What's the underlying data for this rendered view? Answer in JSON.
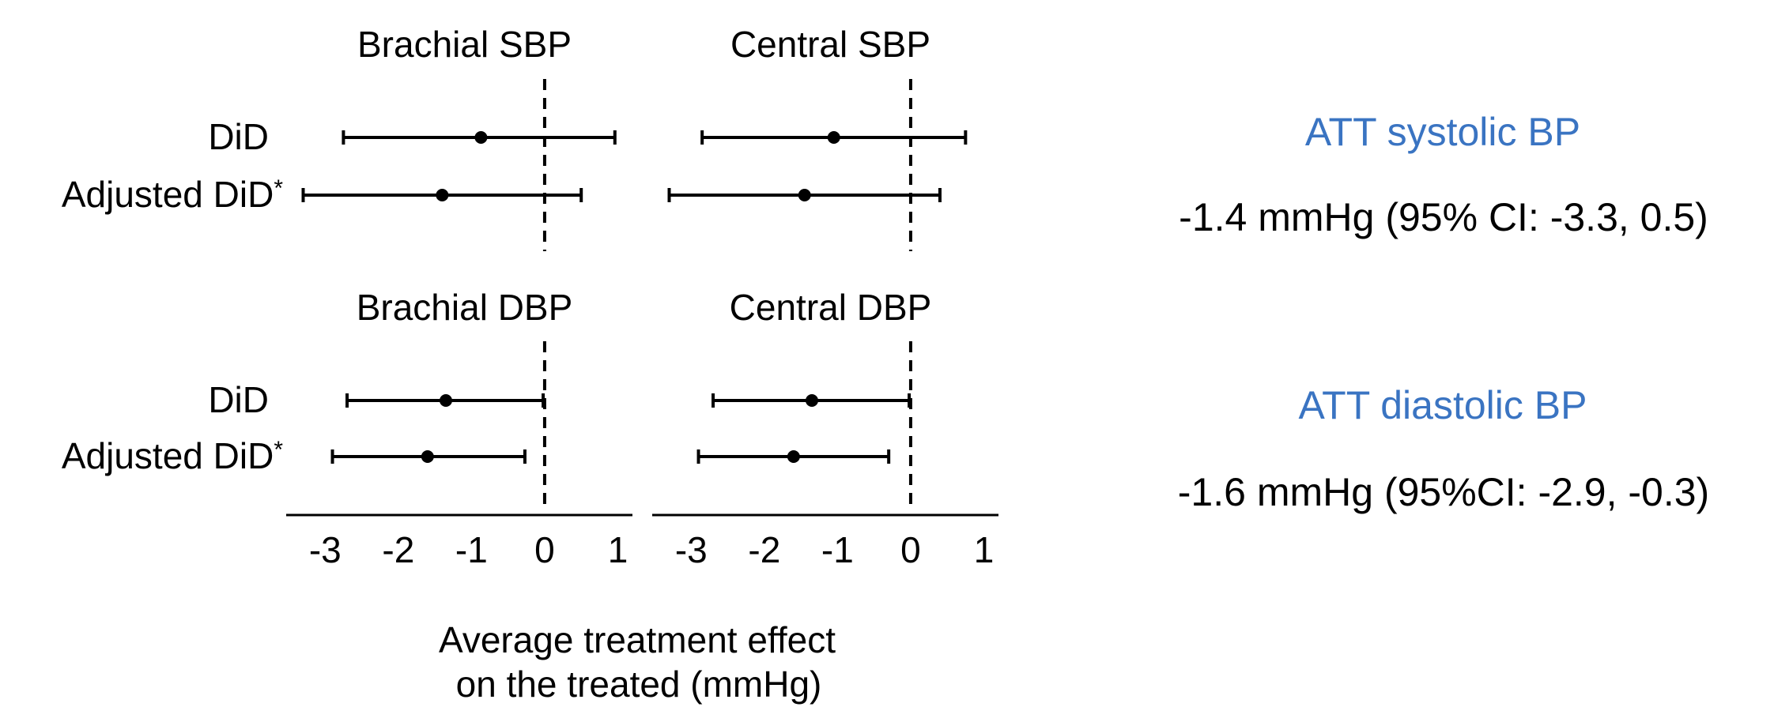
{
  "chart_data": {
    "type": "forest",
    "xlabel": [
      "Average treatment effect",
      "on the treated (mmHg)"
    ],
    "xlim": [
      -3.5,
      1.2
    ],
    "xticks": [
      -3,
      -2,
      -1,
      0,
      1
    ],
    "reference_line": 0,
    "row_labels": [
      "DiD",
      "Adjusted DiD*"
    ],
    "panels": [
      {
        "title": "Brachial SBP",
        "group": "top",
        "column": 0,
        "rows": [
          {
            "label": "DiD",
            "estimate": -0.87,
            "lower": -2.75,
            "upper": 0.96
          },
          {
            "label": "Adjusted DiD*",
            "estimate": -1.4,
            "lower": -3.3,
            "upper": 0.5
          }
        ]
      },
      {
        "title": "Central SBP",
        "group": "top",
        "column": 1,
        "rows": [
          {
            "label": "DiD",
            "estimate": -1.05,
            "lower": -2.85,
            "upper": 0.75
          },
          {
            "label": "Adjusted DiD*",
            "estimate": -1.45,
            "lower": -3.3,
            "upper": 0.4
          }
        ]
      },
      {
        "title": "Brachial DBP",
        "group": "bottom",
        "column": 0,
        "rows": [
          {
            "label": "DiD",
            "estimate": -1.35,
            "lower": -2.7,
            "upper": -0.02
          },
          {
            "label": "Adjusted DiD*",
            "estimate": -1.6,
            "lower": -2.9,
            "upper": -0.27
          }
        ]
      },
      {
        "title": "Central DBP",
        "group": "bottom",
        "column": 1,
        "rows": [
          {
            "label": "DiD",
            "estimate": -1.35,
            "lower": -2.7,
            "upper": -0.02
          },
          {
            "label": "Adjusted DiD*",
            "estimate": -1.6,
            "lower": -2.9,
            "upper": -0.3
          }
        ]
      }
    ]
  },
  "summary": {
    "systolic": {
      "title": "ATT systolic BP",
      "value": "-1.4 mmHg (95% CI: -3.3, 0.5)"
    },
    "diastolic": {
      "title": "ATT diastolic BP",
      "value": "-1.6 mmHg (95%CI: -2.9, -0.3)"
    }
  }
}
